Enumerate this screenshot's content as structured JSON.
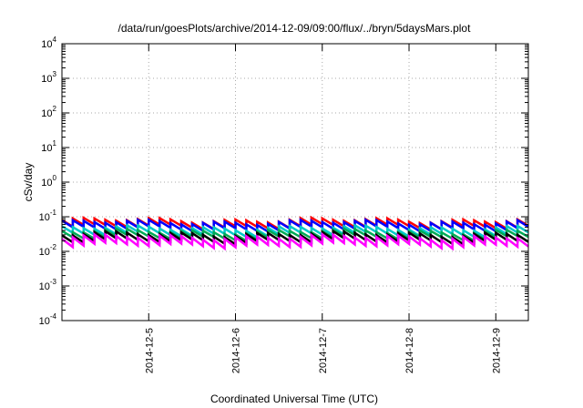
{
  "chart_data": {
    "type": "line",
    "title": "/data/run/goesPlots/archive/2014-12-09/09:00/flux/../bryn/5daysMars.plot",
    "xlabel": "Coordinated Universal Time (UTC)",
    "ylabel": "cSv/day",
    "y_scale": "log",
    "ylim": [
      0.0001,
      10000
    ],
    "xlim": [
      "2014-12-04T00:00",
      "2014-12-09T09:00"
    ],
    "grid": true,
    "y_ticks": [
      {
        "value": 0.0001,
        "base": "10",
        "exp": "-4"
      },
      {
        "value": 0.001,
        "base": "10",
        "exp": "-3"
      },
      {
        "value": 0.01,
        "base": "10",
        "exp": "-2"
      },
      {
        "value": 0.1,
        "base": "10",
        "exp": "-1"
      },
      {
        "value": 1,
        "base": "10",
        "exp": "0"
      },
      {
        "value": 10,
        "base": "10",
        "exp": "1"
      },
      {
        "value": 100,
        "base": "10",
        "exp": "2"
      },
      {
        "value": 1000,
        "base": "10",
        "exp": "3"
      },
      {
        "value": 10000,
        "base": "10",
        "exp": "4"
      }
    ],
    "x_ticks": [
      {
        "value": "2014-12-05T00:00",
        "label": "2014-12-5"
      },
      {
        "value": "2014-12-06T00:00",
        "label": "2014-12-6"
      },
      {
        "value": "2014-12-07T00:00",
        "label": "2014-12-7"
      },
      {
        "value": "2014-12-08T00:00",
        "label": "2014-12-8"
      },
      {
        "value": "2014-12-09T00:00",
        "label": "2014-12-9"
      }
    ],
    "sawtooth_period_hours": 3,
    "series": [
      {
        "color": "#ff0000",
        "peak": 0.08,
        "trough": 0.052
      },
      {
        "color": "#0000ff",
        "peak": 0.07,
        "trough": 0.045
      },
      {
        "color": "#00c8c8",
        "peak": 0.048,
        "trough": 0.031
      },
      {
        "color": "#00aa55",
        "peak": 0.038,
        "trough": 0.025
      },
      {
        "color": "#000000",
        "peak": 0.032,
        "trough": 0.02
      },
      {
        "color": "#ff00ff",
        "peak": 0.026,
        "trough": 0.015
      }
    ]
  }
}
